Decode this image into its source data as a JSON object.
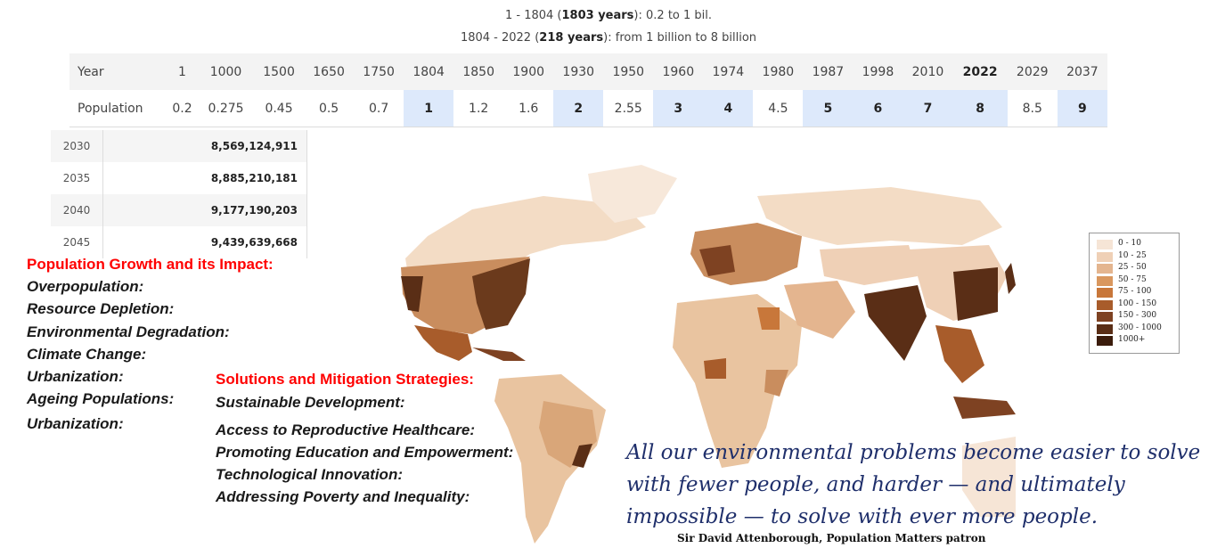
{
  "header": {
    "line1_prefix": "1 - 1804 (",
    "line1_bold": "1803 years",
    "line1_suffix": "): 0.2 to 1 bil.",
    "line2_prefix": "1804 - 2022 (",
    "line2_bold": "218 years",
    "line2_suffix": "): from 1 billion to 8 billion"
  },
  "population_table": {
    "year_label": "Year",
    "population_label": "Population",
    "years": [
      "1",
      "1000",
      "1500",
      "1650",
      "1750",
      "1804",
      "1850",
      "1900",
      "1930",
      "1950",
      "1960",
      "1974",
      "1980",
      "1987",
      "1998",
      "2010",
      "2022",
      "2029",
      "2037"
    ],
    "values": [
      "0.2",
      "0.275",
      "0.45",
      "0.5",
      "0.7",
      "1",
      "1.2",
      "1.6",
      "2",
      "2.55",
      "3",
      "4",
      "4.5",
      "5",
      "6",
      "7",
      "8",
      "8.5",
      "9"
    ],
    "highlight_columns": [
      5,
      8,
      10,
      11,
      13,
      14,
      15,
      16,
      18
    ],
    "bold_year_columns": [
      16
    ]
  },
  "projection_table": [
    {
      "year": "2030",
      "value": "8,569,124,911"
    },
    {
      "year": "2035",
      "value": "8,885,210,181"
    },
    {
      "year": "2040",
      "value": "9,177,190,203"
    },
    {
      "year": "2045",
      "value": "9,439,639,668"
    }
  ],
  "impacts": {
    "heading": "Population Growth and its Impact:",
    "items": [
      "Overpopulation:",
      "Resource Depletion:",
      "Environmental Degradation:",
      "Climate Change:",
      "Urbanization:",
      "Ageing Populations:",
      "Urbanization:"
    ]
  },
  "solutions": {
    "heading": "Solutions and Mitigation Strategies:",
    "items": [
      "Sustainable Development:",
      "Access to Reproductive Healthcare:",
      "Promoting Education and Empowerment:",
      "Technological Innovation:",
      "Addressing Poverty and Inequality:"
    ]
  },
  "quote": {
    "lines": [
      "All our environmental problems become easier to solve",
      "with fewer people, and harder — and ultimately",
      "impossible — to solve with ever more people."
    ],
    "attribution": "Sir David Attenborough, Population Matters patron"
  },
  "map_legend": [
    {
      "label": "0 - 10",
      "color": "#f6e5d6"
    },
    {
      "label": "10 - 25",
      "color": "#efd0b6"
    },
    {
      "label": "25 - 50",
      "color": "#e4b58f"
    },
    {
      "label": "50 - 75",
      "color": "#d9975e"
    },
    {
      "label": "75 - 100",
      "color": "#c8773a"
    },
    {
      "label": "100 - 150",
      "color": "#a85c2b"
    },
    {
      "label": "150 - 300",
      "color": "#7e4222"
    },
    {
      "label": "300 - 1000",
      "color": "#5a2e16"
    },
    {
      "label": "1000+",
      "color": "#3b1c0c"
    }
  ],
  "colors": {
    "highlight": "#dde9fb",
    "heading_red": "#ff0000",
    "quote_blue": "#1f2f6b"
  }
}
